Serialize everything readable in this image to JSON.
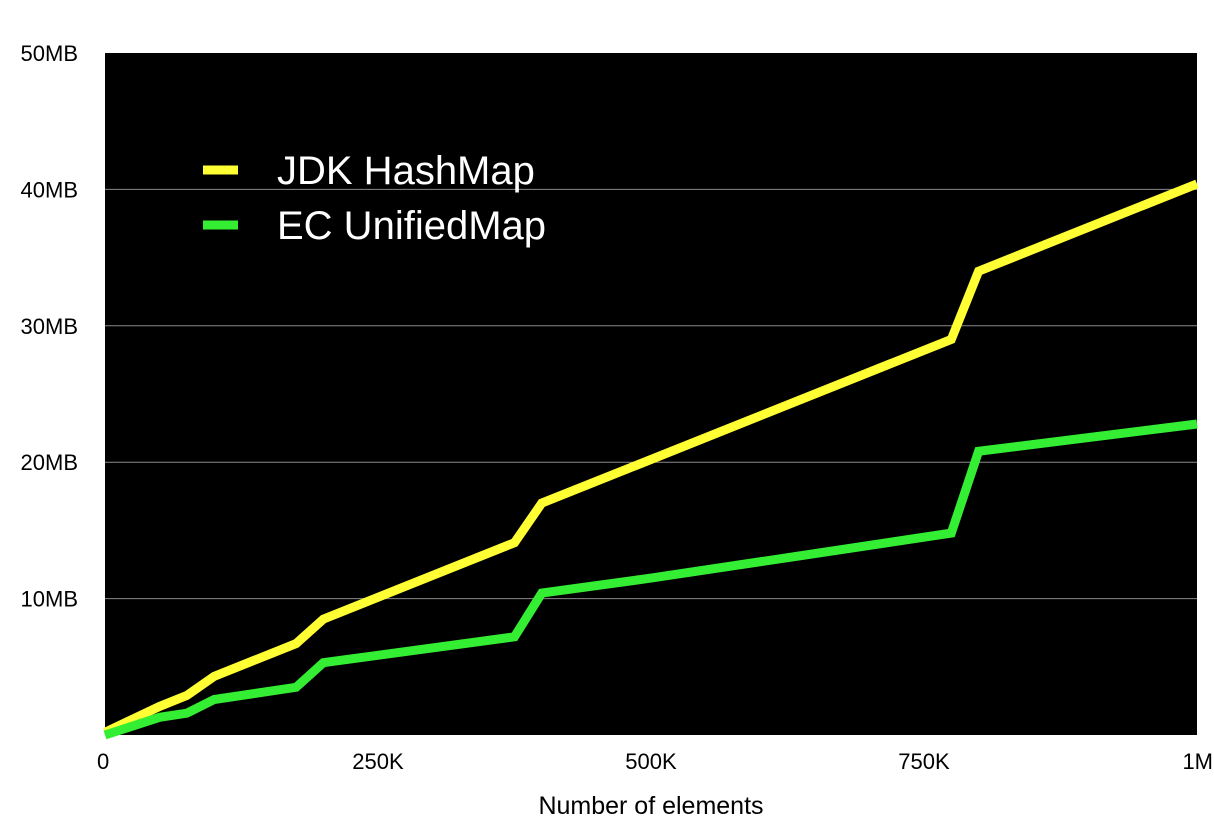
{
  "chart_data": {
    "type": "line",
    "title": "",
    "xlabel": "Number of elements",
    "ylabel": "",
    "xlim": [
      0,
      1000000
    ],
    "ylim": [
      0,
      50
    ],
    "x_ticks": [
      0,
      250000,
      500000,
      750000,
      1000000
    ],
    "x_tick_labels": [
      "0",
      "250K",
      "500K",
      "750K",
      "1M"
    ],
    "y_ticks": [
      10,
      20,
      30,
      40,
      50
    ],
    "y_tick_labels": [
      "10MB",
      "20MB",
      "30MB",
      "40MB",
      "50MB"
    ],
    "grid": "horizontal",
    "plot_background": "#000000",
    "legend_position": "top-left",
    "series": [
      {
        "name": "JDK HashMap",
        "color": "#ffff33",
        "x": [
          0,
          50000,
          75000,
          100000,
          175000,
          200000,
          375000,
          400000,
          775000,
          800000,
          1000000
        ],
        "y": [
          0.2,
          2.1,
          2.9,
          4.3,
          6.7,
          8.5,
          14.1,
          17.0,
          29.0,
          34.0,
          40.4
        ]
      },
      {
        "name": "EC UnifiedMap",
        "color": "#33ee33",
        "x": [
          0,
          50000,
          75000,
          100000,
          175000,
          200000,
          375000,
          400000,
          500000,
          625000,
          775000,
          800000,
          1000000
        ],
        "y": [
          0,
          1.3,
          1.6,
          2.6,
          3.5,
          5.3,
          7.2,
          10.4,
          11.5,
          13.0,
          14.8,
          20.8,
          22.8
        ]
      }
    ]
  }
}
